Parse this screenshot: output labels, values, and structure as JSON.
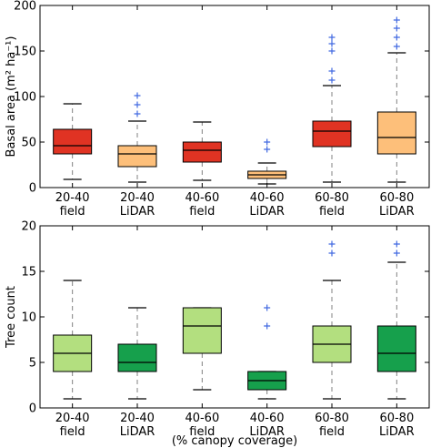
{
  "chart_data": [
    {
      "type": "box",
      "ylabel": "Basal area (m² ha⁻¹)",
      "ylim": [
        0,
        200
      ],
      "yticks": [
        0,
        50,
        100,
        150,
        200
      ],
      "categories": [
        "20-40\nfield",
        "20-40\nLiDAR",
        "40-60\nfield",
        "40-60\nLiDAR",
        "60-80\nfield",
        "60-80\nLiDAR"
      ],
      "boxes": [
        {
          "whisker_low": 9,
          "q1": 37,
          "median": 46,
          "q3": 64,
          "whisker_high": 92,
          "outliers": [],
          "color": "#e03323"
        },
        {
          "whisker_low": 6,
          "q1": 23,
          "median": 37,
          "q3": 46,
          "whisker_high": 73,
          "outliers": [
            81,
            91,
            101
          ],
          "color": "#fdbf7a"
        },
        {
          "whisker_low": 8,
          "q1": 28,
          "median": 41,
          "q3": 50,
          "whisker_high": 72,
          "outliers": [],
          "color": "#e03323"
        },
        {
          "whisker_low": 4,
          "q1": 10,
          "median": 14,
          "q3": 18,
          "whisker_high": 27,
          "outliers": [
            42,
            50
          ],
          "color": "#fdbf7a"
        },
        {
          "whisker_low": 6,
          "q1": 45,
          "median": 62,
          "q3": 73,
          "whisker_high": 112,
          "outliers": [
            118,
            128,
            150,
            158,
            165
          ],
          "color": "#e03323"
        },
        {
          "whisker_low": 6,
          "q1": 37,
          "median": 55,
          "q3": 83,
          "whisker_high": 148,
          "outliers": [
            155,
            165,
            175,
            184
          ],
          "color": "#fdbf7a"
        }
      ]
    },
    {
      "type": "box",
      "ylabel": "Tree count",
      "xlabel": "(% canopy coverage)",
      "ylim": [
        0,
        20
      ],
      "yticks": [
        0,
        5,
        10,
        15,
        20
      ],
      "categories": [
        "20-40\nfield",
        "20-40\nLiDAR",
        "40-60\nfield",
        "40-60\nLiDAR",
        "60-80\nfield",
        "60-80\nLiDAR"
      ],
      "boxes": [
        {
          "whisker_low": 1,
          "q1": 4,
          "median": 6,
          "q3": 8,
          "whisker_high": 14,
          "outliers": [],
          "color": "#b3df7f"
        },
        {
          "whisker_low": 1,
          "q1": 4,
          "median": 5,
          "q3": 7,
          "whisker_high": 11,
          "outliers": [],
          "color": "#16a04c"
        },
        {
          "whisker_low": 2,
          "q1": 6,
          "median": 9,
          "q3": 11,
          "whisker_high": 11,
          "outliers": [],
          "color": "#b3df7f"
        },
        {
          "whisker_low": 1,
          "q1": 2,
          "median": 3,
          "q3": 4,
          "whisker_high": 4,
          "outliers": [
            9,
            11
          ],
          "color": "#16a04c"
        },
        {
          "whisker_low": 1,
          "q1": 5,
          "median": 7,
          "q3": 9,
          "whisker_high": 14,
          "outliers": [
            17,
            18
          ],
          "color": "#b3df7f"
        },
        {
          "whisker_low": 1,
          "q1": 4,
          "median": 6,
          "q3": 9,
          "whisker_high": 16,
          "outliers": [
            17,
            18
          ],
          "color": "#16a04c"
        }
      ]
    }
  ],
  "colors": {
    "outlier": "#4169e1",
    "whisker": "#808080",
    "axis": "#000000"
  }
}
